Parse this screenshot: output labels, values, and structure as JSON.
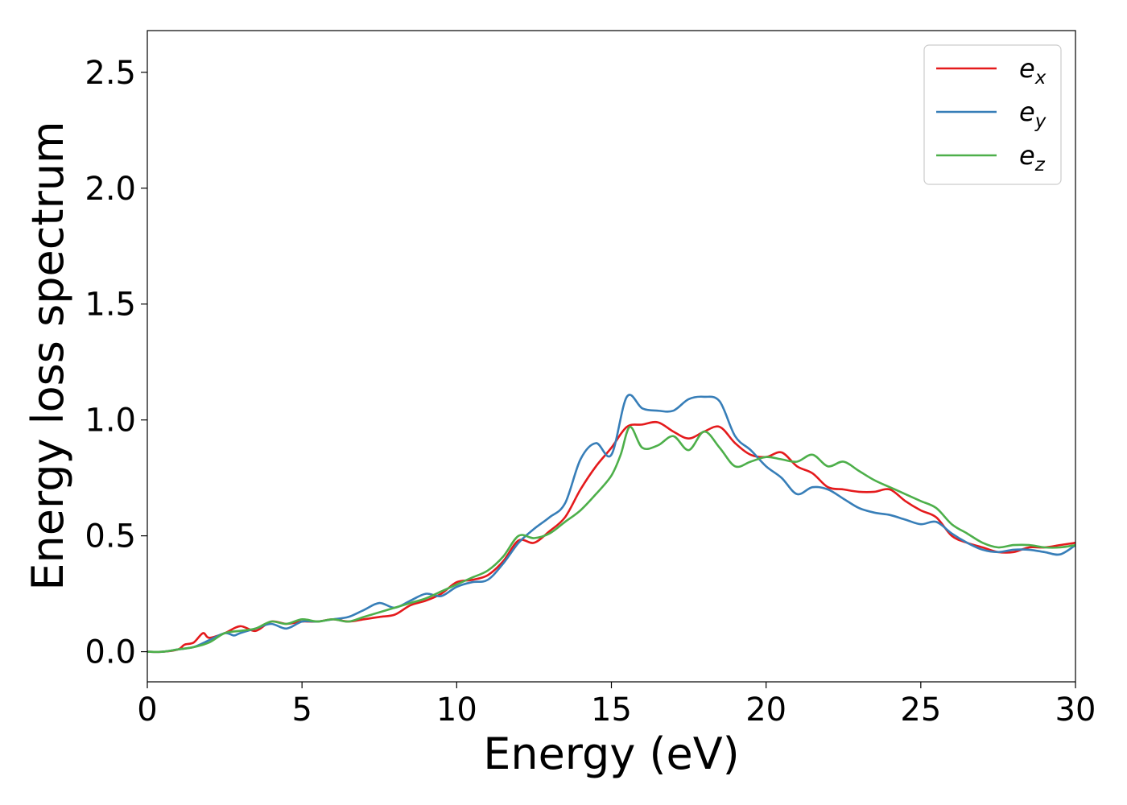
{
  "chart_data": {
    "type": "line",
    "xlabel": "Energy (eV)",
    "ylabel": "Energy loss spectrum",
    "xlim": [
      0,
      30
    ],
    "ylim": [
      -0.13,
      2.68
    ],
    "xticks": [
      0,
      5,
      10,
      15,
      20,
      25,
      30
    ],
    "xtick_labels": [
      "0",
      "5",
      "10",
      "15",
      "20",
      "25",
      "30"
    ],
    "yticks": [
      0.0,
      0.5,
      1.0,
      1.5,
      2.0,
      2.5
    ],
    "ytick_labels": [
      "0.0",
      "0.5",
      "1.0",
      "1.5",
      "2.0",
      "2.5"
    ],
    "grid": false,
    "legend_position": "top-right",
    "series": [
      {
        "name": "e_x",
        "label_base": "e",
        "label_sub": "x",
        "color": "#e41a1c",
        "x": [
          0,
          0.5,
          1.0,
          1.2,
          1.5,
          1.8,
          2.0,
          2.5,
          3.0,
          3.5,
          4.0,
          4.5,
          5.0,
          5.5,
          6.0,
          6.5,
          7.0,
          7.5,
          8.0,
          8.5,
          9.0,
          9.5,
          10.0,
          10.5,
          11.0,
          11.5,
          12.0,
          12.5,
          13.0,
          13.5,
          14.0,
          14.5,
          15.0,
          15.5,
          16.0,
          16.5,
          17.0,
          17.5,
          18.0,
          18.5,
          19.0,
          19.5,
          20.0,
          20.5,
          21.0,
          21.5,
          22.0,
          22.5,
          23.0,
          23.5,
          24.0,
          24.5,
          25.0,
          25.5,
          26.0,
          26.5,
          27.0,
          27.5,
          28.0,
          28.5,
          29.0,
          29.5,
          30.0
        ],
        "y": [
          0.0,
          0.0,
          0.01,
          0.03,
          0.04,
          0.08,
          0.06,
          0.08,
          0.11,
          0.09,
          0.13,
          0.12,
          0.13,
          0.13,
          0.14,
          0.13,
          0.14,
          0.15,
          0.16,
          0.2,
          0.22,
          0.25,
          0.3,
          0.31,
          0.33,
          0.39,
          0.48,
          0.47,
          0.52,
          0.58,
          0.7,
          0.8,
          0.88,
          0.97,
          0.98,
          0.99,
          0.95,
          0.92,
          0.95,
          0.97,
          0.9,
          0.85,
          0.84,
          0.86,
          0.8,
          0.77,
          0.71,
          0.7,
          0.69,
          0.69,
          0.7,
          0.65,
          0.61,
          0.58,
          0.5,
          0.47,
          0.45,
          0.43,
          0.43,
          0.45,
          0.45,
          0.46,
          0.47
        ]
      },
      {
        "name": "e_y",
        "label_base": "e",
        "label_sub": "y",
        "color": "#377eb8",
        "x": [
          0,
          0.5,
          1.0,
          1.5,
          2.0,
          2.5,
          2.8,
          3.0,
          3.5,
          4.0,
          4.5,
          5.0,
          5.5,
          6.0,
          6.5,
          7.0,
          7.5,
          8.0,
          8.5,
          9.0,
          9.5,
          10.0,
          10.5,
          11.0,
          11.5,
          12.0,
          12.5,
          13.0,
          13.5,
          14.0,
          14.5,
          15.0,
          15.5,
          16.0,
          16.5,
          17.0,
          17.5,
          18.0,
          18.5,
          19.0,
          19.5,
          20.0,
          20.5,
          21.0,
          21.5,
          22.0,
          22.5,
          23.0,
          23.5,
          24.0,
          24.5,
          25.0,
          25.5,
          26.0,
          26.5,
          27.0,
          27.5,
          28.0,
          28.5,
          29.0,
          29.5,
          30.0
        ],
        "y": [
          0.0,
          0.0,
          0.01,
          0.02,
          0.05,
          0.08,
          0.07,
          0.08,
          0.1,
          0.12,
          0.1,
          0.13,
          0.13,
          0.14,
          0.15,
          0.18,
          0.21,
          0.19,
          0.22,
          0.25,
          0.24,
          0.28,
          0.3,
          0.31,
          0.38,
          0.47,
          0.53,
          0.58,
          0.64,
          0.83,
          0.9,
          0.85,
          1.1,
          1.05,
          1.04,
          1.04,
          1.09,
          1.1,
          1.08,
          0.93,
          0.87,
          0.8,
          0.75,
          0.68,
          0.71,
          0.7,
          0.66,
          0.62,
          0.6,
          0.59,
          0.57,
          0.55,
          0.56,
          0.51,
          0.47,
          0.44,
          0.43,
          0.44,
          0.44,
          0.43,
          0.42,
          0.46
        ]
      },
      {
        "name": "e_z",
        "label_base": "e",
        "label_sub": "z",
        "color": "#4daf4a",
        "x": [
          0,
          0.5,
          1.0,
          1.5,
          2.0,
          2.5,
          3.0,
          3.5,
          4.0,
          4.5,
          5.0,
          5.5,
          6.0,
          6.5,
          7.0,
          7.5,
          8.0,
          8.5,
          9.0,
          9.5,
          10.0,
          10.5,
          11.0,
          11.5,
          12.0,
          12.5,
          13.0,
          13.5,
          14.0,
          14.5,
          15.0,
          15.3,
          15.6,
          16.0,
          16.5,
          17.0,
          17.5,
          18.0,
          18.5,
          19.0,
          19.5,
          20.0,
          20.5,
          21.0,
          21.5,
          22.0,
          22.5,
          23.0,
          23.5,
          24.0,
          24.5,
          25.0,
          25.5,
          26.0,
          26.5,
          27.0,
          27.5,
          28.0,
          28.5,
          29.0,
          29.5,
          30.0
        ],
        "y": [
          0.0,
          0.0,
          0.01,
          0.02,
          0.04,
          0.08,
          0.09,
          0.1,
          0.13,
          0.12,
          0.14,
          0.13,
          0.14,
          0.13,
          0.15,
          0.17,
          0.19,
          0.21,
          0.23,
          0.26,
          0.29,
          0.32,
          0.35,
          0.41,
          0.5,
          0.49,
          0.51,
          0.56,
          0.61,
          0.68,
          0.76,
          0.85,
          0.97,
          0.88,
          0.89,
          0.93,
          0.87,
          0.95,
          0.88,
          0.8,
          0.82,
          0.84,
          0.83,
          0.82,
          0.85,
          0.8,
          0.82,
          0.78,
          0.74,
          0.71,
          0.68,
          0.65,
          0.62,
          0.55,
          0.51,
          0.47,
          0.45,
          0.46,
          0.46,
          0.45,
          0.45,
          0.46
        ]
      }
    ]
  }
}
